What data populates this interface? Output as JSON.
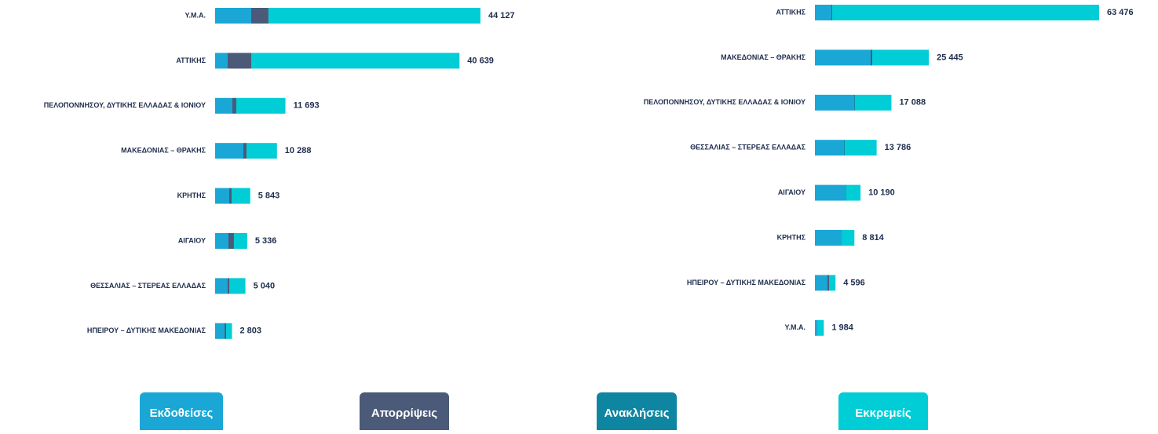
{
  "legend": [
    {
      "name": "Εκδοθείσες",
      "color": "#1aa7d6"
    },
    {
      "name": "Απορρίψεις",
      "color": "#4a5a78"
    },
    {
      "name": "Ανακλήσεις",
      "color": "#0e86a2"
    },
    {
      "name": "Εκκρεμείς",
      "color": "#00cdd6"
    }
  ],
  "chart_data": [
    {
      "type": "bar",
      "categories": [
        "Υ.Μ.Α.",
        "ΑΤΤΙΚΗΣ",
        "ΠΕΛΟΠΟΝΝΗΣΟΥ, ΔΥΤΙΚΗΣ ΕΛΛΑΔΑΣ & ΙΟΝΙΟΥ",
        "ΜΑΚΕΔΟΝΙΑΣ – ΘΡΑΚΗΣ",
        "ΚΡΗΤΗΣ",
        "ΑΙΓΑΙΟΥ",
        "ΘΕΣΣΑΛΙΑΣ – ΣΤΕΡΕΑΣ ΕΛΛΑΔΑΣ",
        "ΗΠΕΙΡΟΥ – ΔΥΤΙΚΗΣ ΜΑΚΕΔΟΝΙΑΣ"
      ],
      "series": [
        {
          "values": [
            6000,
            2090,
            2870,
            4700,
            2350,
            2220,
            2090,
            1570
          ]
        },
        {
          "values": [
            2870,
            3915,
            650,
            520,
            390,
            910,
            260,
            260
          ]
        },
        {
          "values": [
            0,
            0,
            0,
            0,
            0,
            0,
            0,
            0
          ]
        },
        {
          "values": [
            35257,
            34634,
            8173,
            5068,
            3103,
            2206,
            2690,
            973
          ]
        }
      ],
      "totals": [
        44127,
        40639,
        11693,
        10288,
        5843,
        5336,
        5040,
        2803
      ],
      "total_labels": [
        "44 127",
        "40 639",
        "11 693",
        "10 288",
        "5 843",
        "5 336",
        "5 040",
        "2 803"
      ]
    },
    {
      "type": "bar",
      "categories": [
        "ΑΤΤΙΚΗΣ",
        "ΜΑΚΕΔΟΝΙΑΣ – ΘΡΑΚΗΣ",
        "ΠΕΛΟΠΟΝΝΗΣΟΥ, ΔΥΤΙΚΗΣ ΕΛΛΑΔΑΣ & ΙΟΝΙΟΥ",
        "ΘΕΣΣΑΛΙΑΣ – ΣΤΕΡΕΑΣ ΕΛΛΑΔΑΣ",
        "ΑΙΓΑΙΟΥ",
        "ΚΡΗΤΗΣ",
        "ΗΠΕΙΡΟΥ – ΔΥΤΙΚΗΣ ΜΑΚΕΔΟΝΙΑΣ",
        "Υ.Μ.Α."
      ],
      "series": [
        {
          "values": [
            3680,
            12450,
            8765,
            6485,
            6835,
            5785,
            2805,
            525
          ]
        },
        {
          "values": [
            175,
            350,
            0,
            0,
            0,
            0,
            350,
            0
          ]
        },
        {
          "values": [
            0,
            0,
            175,
            175,
            100,
            100,
            0,
            0
          ]
        },
        {
          "values": [
            59621,
            12645,
            8148,
            7126,
            3255,
            2929,
            1441,
            1459
          ]
        }
      ],
      "totals": [
        63476,
        25445,
        17088,
        13786,
        10190,
        8814,
        4596,
        1984
      ],
      "total_labels": [
        "63 476",
        "25 445",
        "17 088",
        "13 786",
        "10 190",
        "8 814",
        "4 596",
        "1 984"
      ]
    }
  ]
}
